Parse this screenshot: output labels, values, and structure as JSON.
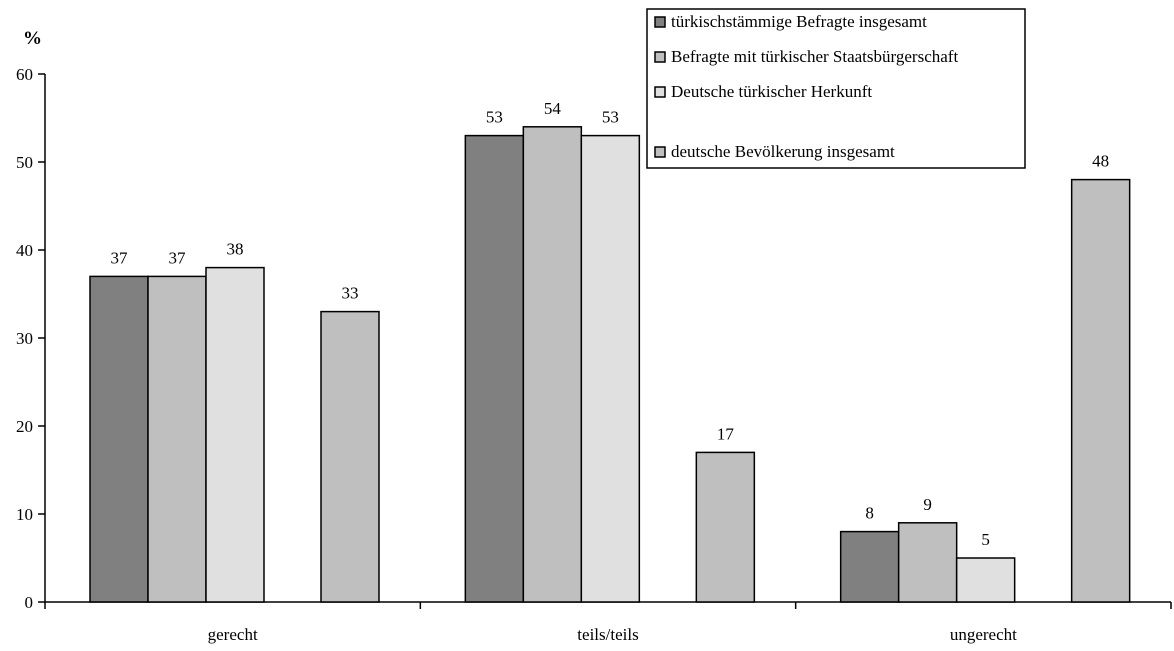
{
  "chart_data": {
    "type": "bar",
    "ylabel": "%",
    "ylim": [
      0,
      60
    ],
    "yticks": [
      0,
      10,
      20,
      30,
      40,
      50,
      60
    ],
    "categories": [
      "gerecht",
      "teils/teils",
      "ungerecht"
    ],
    "grid": false,
    "legend_position": "top-right",
    "series": [
      {
        "name": "türkischstämmige Befragte insgesamt",
        "values": [
          37,
          53,
          8
        ],
        "color": "#808080"
      },
      {
        "name": "Befragte mit türkischer Staatsbürgerschaft",
        "values": [
          37,
          54,
          9
        ],
        "color": "#bfbfbf"
      },
      {
        "name": "Deutsche türkischer Herkunft",
        "values": [
          38,
          53,
          5
        ],
        "color": "#e0e0e0"
      },
      {
        "name": "deutsche Bevölkerung insgesamt",
        "values": [
          33,
          17,
          48
        ],
        "color": "#bfbfbf"
      }
    ]
  }
}
